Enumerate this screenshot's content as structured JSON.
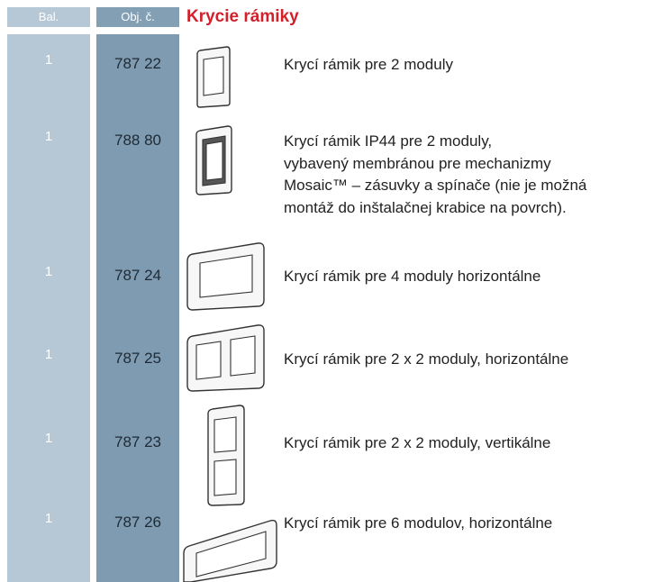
{
  "header": {
    "col1": "Bal.",
    "col2": "Obj. č.",
    "title": "Krycie rámiky"
  },
  "rows": [
    {
      "qty": 1,
      "code": "787 22",
      "description": [
        "Krycí rámik pre 2 moduly"
      ]
    },
    {
      "qty": 1,
      "code": "788 80",
      "description": [
        "Krycí rámik IP44 pre 2 moduly,",
        "vybavený membránou pre mechanizmy",
        "Mosaic™ – zásuvky a spínače (nie je možná",
        "montáž do inštalačnej krabice na povrch)."
      ]
    },
    {
      "qty": 1,
      "code": "787 24",
      "description": [
        "Krycí rámik pre 4 moduly horizontálne"
      ]
    },
    {
      "qty": 1,
      "code": "787 25",
      "description": [
        "Krycí rámik pre 2 x 2 moduly, horizontálne"
      ]
    },
    {
      "qty": 1,
      "code": "787 23",
      "description": [
        "Krycí rámik pre 2 x 2 moduly, vertikálne"
      ]
    },
    {
      "qty": 1,
      "code": "787 26",
      "description": [
        "Krycí rámik pre 6 modulov, horizontálne"
      ]
    }
  ]
}
